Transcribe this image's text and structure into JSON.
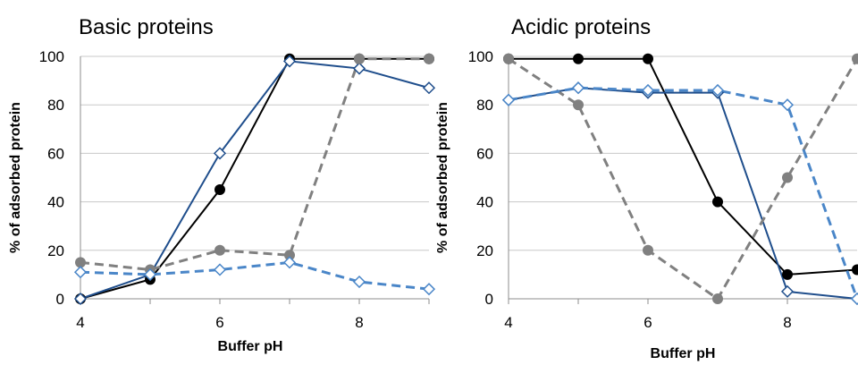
{
  "chart_data": [
    {
      "type": "line",
      "title": "Basic proteins",
      "xlabel": "Buffer pH",
      "ylabel": "% of adsorbed protein",
      "xlim": [
        4,
        9
      ],
      "ylim": [
        0,
        100
      ],
      "x_ticks": [
        "4",
        "6",
        "8"
      ],
      "y_ticks": [
        "0",
        "20",
        "40",
        "60",
        "80",
        "100"
      ],
      "grid": "horizontal",
      "series": [
        {
          "color": "#000000",
          "line": "solid",
          "marker": "filled-circle",
          "points": [
            [
              4,
              0
            ],
            [
              5,
              8
            ],
            [
              6,
              45
            ],
            [
              7,
              99
            ],
            [
              8,
              99
            ],
            [
              9,
              99
            ]
          ]
        },
        {
          "color": "#1f4e8c",
          "line": "solid",
          "marker": "open-diamond",
          "points": [
            [
              4,
              0
            ],
            [
              5,
              10
            ],
            [
              6,
              60
            ],
            [
              7,
              98
            ],
            [
              8,
              95
            ],
            [
              9,
              87
            ]
          ]
        },
        {
          "color": "#808080",
          "line": "dashed",
          "marker": "filled-circle",
          "points": [
            [
              4,
              15
            ],
            [
              5,
              12
            ],
            [
              6,
              20
            ],
            [
              7,
              18
            ],
            [
              8,
              99
            ],
            [
              9,
              99
            ]
          ]
        },
        {
          "color": "#4a86c8",
          "line": "dashed",
          "marker": "open-diamond",
          "points": [
            [
              4,
              11
            ],
            [
              5,
              10
            ],
            [
              6,
              12
            ],
            [
              7,
              15
            ],
            [
              8,
              7
            ],
            [
              9,
              4
            ]
          ]
        }
      ]
    },
    {
      "type": "line",
      "title": "Acidic proteins",
      "xlabel": "Buffer pH",
      "ylabel": "% of adsorbed protein",
      "xlim": [
        4,
        9
      ],
      "ylim": [
        0,
        100
      ],
      "x_ticks": [
        "4",
        "6",
        "8"
      ],
      "y_ticks": [
        "0",
        "20",
        "40",
        "60",
        "80",
        "100"
      ],
      "grid": "horizontal",
      "series": [
        {
          "color": "#000000",
          "line": "solid",
          "marker": "filled-circle",
          "points": [
            [
              4,
              99
            ],
            [
              5,
              99
            ],
            [
              6,
              99
            ],
            [
              7,
              40
            ],
            [
              8,
              10
            ],
            [
              9,
              12
            ]
          ]
        },
        {
          "color": "#1f4e8c",
          "line": "solid",
          "marker": "open-diamond",
          "points": [
            [
              4,
              82
            ],
            [
              5,
              87
            ],
            [
              6,
              85
            ],
            [
              7,
              85
            ],
            [
              8,
              3
            ],
            [
              9,
              0
            ]
          ]
        },
        {
          "color": "#808080",
          "line": "dashed",
          "marker": "filled-circle",
          "points": [
            [
              4,
              99
            ],
            [
              5,
              80
            ],
            [
              6,
              20
            ],
            [
              7,
              0
            ],
            [
              8,
              50
            ],
            [
              9,
              99
            ]
          ]
        },
        {
          "color": "#4a86c8",
          "line": "dashed",
          "marker": "open-diamond",
          "points": [
            [
              4,
              82
            ],
            [
              5,
              87
            ],
            [
              6,
              86
            ],
            [
              7,
              86
            ],
            [
              8,
              80
            ],
            [
              9,
              0
            ]
          ]
        }
      ]
    }
  ]
}
